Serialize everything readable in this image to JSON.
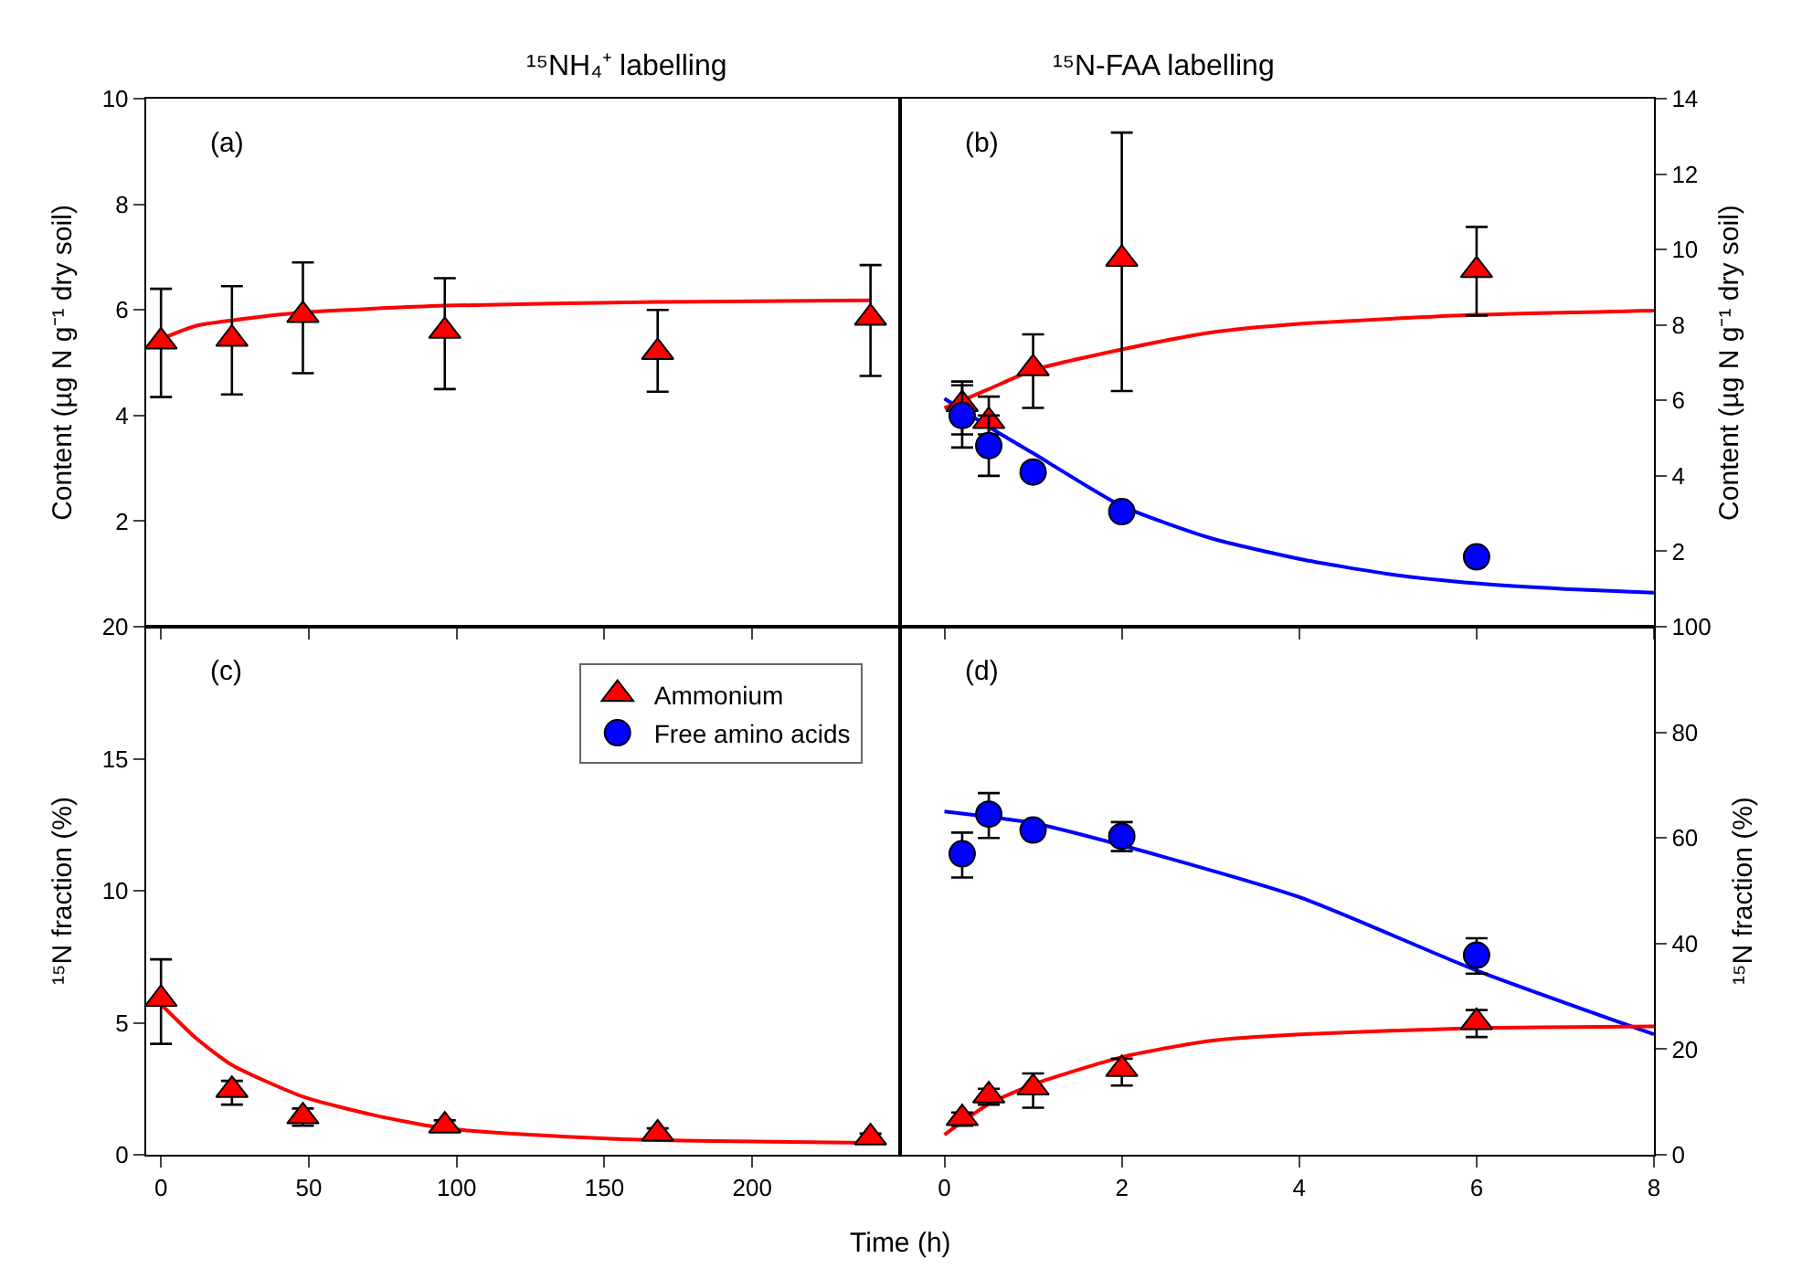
{
  "chart_data": [
    {
      "type": "scatter",
      "title": "¹⁵NH₄⁺ labelling",
      "ylabel": "Content (µg N g⁻¹ dry soil)",
      "annotations": [
        "(a)"
      ],
      "xlim": [
        -5,
        250
      ],
      "xticks": [
        0,
        50,
        100,
        150,
        200
      ],
      "ylim": [
        0,
        10
      ],
      "yticks": [
        2,
        4,
        6,
        8,
        10
      ],
      "tick_labels": "y",
      "grid": false,
      "series": [
        {
          "type": "scatter",
          "color": "#ff0000",
          "marker": "triangle",
          "x": [
            0,
            24,
            48,
            96,
            168,
            240
          ],
          "values": [
            5.4,
            5.45,
            5.9,
            5.6,
            5.2,
            5.85
          ],
          "errors": [
            [
              4.35,
              6.4
            ],
            [
              4.4,
              6.45
            ],
            [
              4.8,
              6.9
            ],
            [
              4.5,
              6.6
            ],
            [
              4.45,
              6.0
            ],
            [
              4.75,
              6.85
            ]
          ]
        },
        {
          "type": "line",
          "color": "#ff0000",
          "marker": "none",
          "x": [
            0,
            12,
            24,
            48,
            96,
            168,
            240
          ],
          "values": [
            5.45,
            5.7,
            5.8,
            5.95,
            6.08,
            6.15,
            6.18
          ]
        }
      ]
    },
    {
      "type": "scatter",
      "title": "¹⁵N-FAA labelling",
      "ylabel": "Content (µg N g⁻¹ dry soil)",
      "annotations": [
        "(b)"
      ],
      "xlim": [
        -0.5,
        8
      ],
      "xticks": [
        0,
        2,
        4,
        6,
        8
      ],
      "ylim": [
        0,
        14
      ],
      "yticks": [
        2,
        4,
        6,
        8,
        10,
        12,
        14
      ],
      "tick_labels": "y",
      "grid": false,
      "series": [
        {
          "type": "scatter",
          "color": "#ff0000",
          "marker": "triangle",
          "x": [
            0.2,
            0.5,
            1,
            2,
            6
          ],
          "values": [
            5.9,
            5.45,
            6.85,
            9.75,
            9.45
          ],
          "errors": [
            [
              5.1,
              6.5
            ],
            [
              5.1,
              6.1
            ],
            [
              5.8,
              7.75
            ],
            [
              6.25,
              13.1
            ],
            [
              8.25,
              10.6
            ]
          ]
        },
        {
          "type": "scatter",
          "color": "#0000ff",
          "marker": "circle",
          "x": [
            0.2,
            0.5,
            1,
            2,
            6
          ],
          "values": [
            5.6,
            4.8,
            4.1,
            3.05,
            1.85
          ],
          "errors": [
            [
              4.75,
              6.4
            ],
            [
              4.0,
              5.6
            ],
            null,
            null,
            null
          ]
        },
        {
          "type": "line",
          "color": "#ff0000",
          "marker": "none",
          "x": [
            0,
            0.5,
            1,
            2,
            3,
            4,
            6,
            8
          ],
          "values": [
            5.8,
            6.3,
            6.8,
            7.35,
            7.8,
            8.03,
            8.27,
            8.38
          ]
        },
        {
          "type": "line",
          "color": "#0000ff",
          "marker": "none",
          "x": [
            0,
            0.5,
            1,
            2,
            3,
            4,
            5,
            6,
            7,
            8
          ],
          "values": [
            6.05,
            5.3,
            4.6,
            3.2,
            2.35,
            1.8,
            1.4,
            1.15,
            1.0,
            0.9
          ]
        }
      ]
    },
    {
      "type": "scatter",
      "ylabel": "¹⁵N fraction (%)",
      "xlabel": "Time (h)",
      "annotations": [
        "(c)"
      ],
      "legend": "top right",
      "xlim": [
        -5,
        250
      ],
      "xticks": [
        0,
        50,
        100,
        150,
        200
      ],
      "ylim": [
        0,
        20
      ],
      "yticks": [
        0,
        5,
        10,
        15,
        20
      ],
      "grid": false,
      "series": [
        {
          "name": "Ammonium",
          "type": "scatter",
          "color": "#ff0000",
          "marker": "triangle",
          "x": [
            0,
            24,
            48,
            96,
            168,
            240
          ],
          "values": [
            5.9,
            2.45,
            1.45,
            1.1,
            0.8,
            0.65
          ],
          "errors": [
            [
              4.2,
              7.4
            ],
            [
              1.9,
              2.8
            ],
            [
              1.1,
              1.75
            ],
            [
              0.9,
              1.3
            ],
            [
              0.6,
              1.0
            ],
            [
              0.5,
              0.8
            ]
          ]
        },
        {
          "name": "Free amino acids",
          "type": "scatter",
          "color": "#0000ff",
          "marker": "circle",
          "values": [
            null
          ]
        },
        {
          "type": "line",
          "color": "#ff0000",
          "marker": "none",
          "x": [
            0,
            12,
            24,
            48,
            72,
            96,
            144,
            168,
            240
          ],
          "values": [
            5.7,
            4.4,
            3.4,
            2.2,
            1.5,
            1.0,
            0.65,
            0.55,
            0.45
          ]
        }
      ]
    },
    {
      "type": "scatter",
      "ylabel": "¹⁵N fraction (%)",
      "annotations": [
        "(d)"
      ],
      "xlim": [
        -0.5,
        8
      ],
      "xticks": [
        0,
        2,
        4,
        6,
        8
      ],
      "ylim": [
        0,
        100
      ],
      "yticks": [
        0,
        20,
        40,
        60,
        80,
        100
      ],
      "grid": false,
      "series": [
        {
          "type": "scatter",
          "color": "#0000ff",
          "marker": "circle",
          "x": [
            0.2,
            0.5,
            1,
            2,
            6
          ],
          "values": [
            57,
            64.5,
            61.5,
            60.3,
            37.8
          ],
          "errors": [
            [
              52.5,
              61
            ],
            [
              60,
              68.5
            ],
            null,
            [
              57.5,
              63
            ],
            [
              34.3,
              41
            ]
          ]
        },
        {
          "type": "scatter",
          "color": "#ff0000",
          "marker": "triangle",
          "x": [
            0.2,
            0.5,
            1,
            2,
            6
          ],
          "values": [
            6.9,
            11.2,
            12.7,
            16.2,
            25.1
          ],
          "errors": [
            [
              5.5,
              8
            ],
            [
              9.5,
              12.5
            ],
            [
              8.9,
              15.4
            ],
            [
              13.1,
              18.2
            ],
            [
              22.3,
              27.4
            ]
          ]
        },
        {
          "type": "line",
          "color": "#0000ff",
          "marker": "none",
          "x": [
            0,
            1,
            2,
            4,
            6,
            8
          ],
          "values": [
            65,
            62.8,
            58.6,
            48.8,
            34.9,
            22.8
          ]
        },
        {
          "type": "line",
          "color": "#ff0000",
          "marker": "none",
          "x": [
            0,
            0.5,
            1,
            2,
            3,
            4,
            6,
            8
          ],
          "values": [
            3.8,
            9.6,
            13.3,
            18.5,
            21.6,
            22.8,
            24.0,
            24.3
          ]
        }
      ]
    }
  ]
}
